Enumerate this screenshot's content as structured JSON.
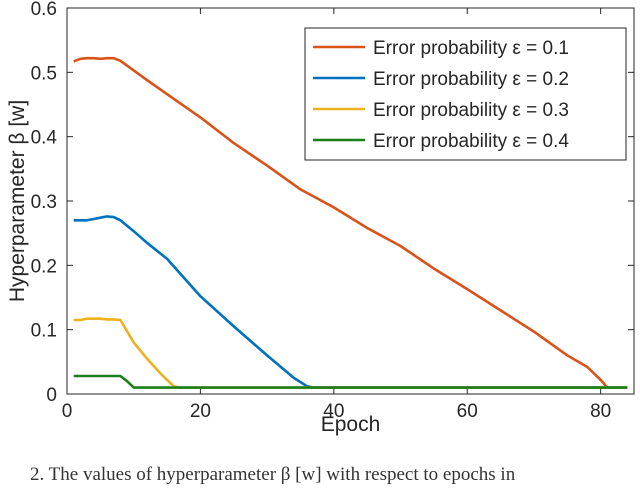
{
  "chart_data": {
    "type": "line",
    "xlabel": "Epoch",
    "ylabel": "Hyperparameter β [w]",
    "xlim": [
      0,
      85
    ],
    "ylim": [
      0,
      0.6
    ],
    "xticks": [
      0,
      20,
      40,
      60,
      80
    ],
    "yticks": [
      0,
      0.1,
      0.2,
      0.3,
      0.4,
      0.5,
      0.6
    ],
    "grid": false,
    "legend_position": "top-right",
    "series": [
      {
        "name": "Error probability ε = 0.1",
        "color": "#d95319",
        "x": [
          1,
          2,
          3,
          4,
          5,
          6,
          7,
          8,
          10,
          12,
          15,
          20,
          25,
          30,
          35,
          40,
          45,
          50,
          55,
          60,
          65,
          70,
          75,
          78,
          80,
          81
        ],
        "y": [
          0.517,
          0.521,
          0.522,
          0.522,
          0.521,
          0.522,
          0.522,
          0.518,
          0.503,
          0.488,
          0.466,
          0.43,
          0.39,
          0.355,
          0.318,
          0.29,
          0.258,
          0.23,
          0.195,
          0.163,
          0.13,
          0.097,
          0.06,
          0.042,
          0.022,
          0.01
        ]
      },
      {
        "name": "Error probability ε = 0.2",
        "color": "#0072bd",
        "x": [
          1,
          2,
          3,
          4,
          5,
          6,
          7,
          8,
          10,
          12,
          15,
          20,
          25,
          30,
          34,
          36,
          37,
          84
        ],
        "y": [
          0.27,
          0.27,
          0.27,
          0.272,
          0.274,
          0.276,
          0.275,
          0.27,
          0.253,
          0.235,
          0.21,
          0.152,
          0.105,
          0.06,
          0.025,
          0.012,
          0.01,
          0.01
        ]
      },
      {
        "name": "Error probability ε = 0.3",
        "color": "#edb120",
        "x": [
          1,
          2,
          3,
          4,
          5,
          6,
          7,
          8,
          10,
          12,
          14,
          16,
          17,
          84
        ],
        "y": [
          0.115,
          0.115,
          0.117,
          0.117,
          0.117,
          0.116,
          0.116,
          0.115,
          0.08,
          0.055,
          0.032,
          0.012,
          0.01,
          0.01
        ]
      },
      {
        "name": "Error probability ε = 0.4",
        "color": "#1a7f1a",
        "x": [
          1,
          2,
          4,
          6,
          8,
          9,
          10,
          84
        ],
        "y": [
          0.028,
          0.028,
          0.028,
          0.028,
          0.028,
          0.02,
          0.01,
          0.01
        ]
      }
    ]
  },
  "caption": "2.  The values of hyperparameter β [w] with respect to epochs in"
}
